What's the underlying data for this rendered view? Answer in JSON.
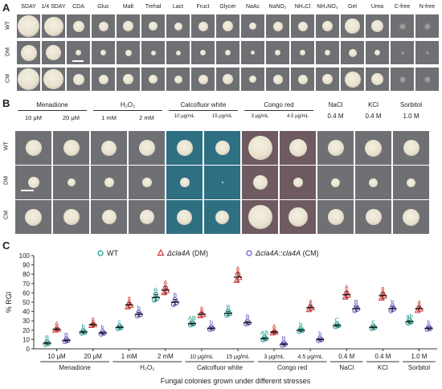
{
  "panelA": {
    "letter": "A",
    "columns": [
      "SDAY",
      "1/4 SDAY",
      "CDA",
      "Gluc",
      "Malt",
      "Trehal",
      "Lact",
      "Fruct",
      "Glycer",
      "NaAc",
      "NaNO₂",
      "NH₄Cl",
      "NH₄NO₃",
      "Gel",
      "Urea",
      "C-free",
      "N-free"
    ],
    "rows": [
      "WT",
      "DM",
      "CM"
    ]
  },
  "panelB": {
    "letter": "B",
    "groups": [
      {
        "name": "Menadione",
        "conds": [
          "10 μM",
          "20 μM"
        ]
      },
      {
        "name": "H₂O₂",
        "conds": [
          "1 mM",
          "2 mM"
        ]
      },
      {
        "name": "Calcofluor white",
        "conds": [
          "10 μg/mL",
          "15 μg/mL"
        ]
      },
      {
        "name": "Congo red",
        "conds": [
          "3 μg/mL",
          "4.5 μg/mL"
        ]
      },
      {
        "name": "NaCl",
        "conds": [
          "0.4 M"
        ]
      },
      {
        "name": "KCl",
        "conds": [
          "0.4 M"
        ]
      },
      {
        "name": "Sorbitol",
        "conds": [
          "1.0 M"
        ]
      }
    ],
    "rows": [
      "WT",
      "DM",
      "CM"
    ]
  },
  "panelC": {
    "letter": "C",
    "legend": {
      "wt": "WT",
      "dm_prefix": "Δcla4A",
      "dm_suffix": " (DM)",
      "cm_prefix": "Δcla4A::cla4A",
      "cm_suffix": " (CM)"
    },
    "colors": {
      "wt": "#1a9a8a",
      "dm": "#d93030",
      "cm": "#5b55c8"
    }
  },
  "chart_data": {
    "type": "scatter",
    "ylabel": "% RGI",
    "xlabel": "Fungal colonies grown under different stresses",
    "ylim": [
      0,
      100
    ],
    "yticks": [
      0,
      10,
      20,
      30,
      40,
      50,
      60,
      70,
      80,
      90,
      100
    ],
    "categories": [
      "10 μM",
      "20 μM",
      "1 mM",
      "2 mM",
      "10 μg/mL",
      "15 μg/mL",
      "3 μg/mL",
      "4.5 μg/mL",
      "0.4 M",
      "0.4 M",
      "1.0 M"
    ],
    "groups": [
      "Menadione",
      "H₂O₂",
      "Calcofluor white",
      "Congo red",
      "NaCl",
      "KCl",
      "Sorbitol"
    ],
    "series": [
      {
        "name": "WT",
        "values": [
          6,
          18,
          23,
          55,
          27,
          38,
          11,
          20,
          25,
          23,
          29
        ],
        "letters": [
          "B",
          "b",
          "c",
          "B",
          "AB",
          "B",
          "AB",
          "b",
          "C",
          "c",
          "ab"
        ]
      },
      {
        "name": "Δcla4A (DM)",
        "values": [
          21,
          26,
          47,
          63,
          37,
          77,
          18,
          44,
          58,
          57,
          43
        ],
        "letters": [
          "A",
          "a",
          "a",
          "A",
          "a",
          "A",
          "A",
          "a",
          "A",
          "a",
          "a"
        ]
      },
      {
        "name": "Δcla4A::cla4A (CM)",
        "values": [
          9,
          17,
          37,
          50,
          22,
          28,
          5,
          10,
          43,
          43,
          22
        ],
        "letters": [
          "B",
          "b",
          "b",
          "B",
          "b",
          "B",
          "B",
          "b",
          "B",
          "b",
          "b"
        ]
      }
    ]
  }
}
